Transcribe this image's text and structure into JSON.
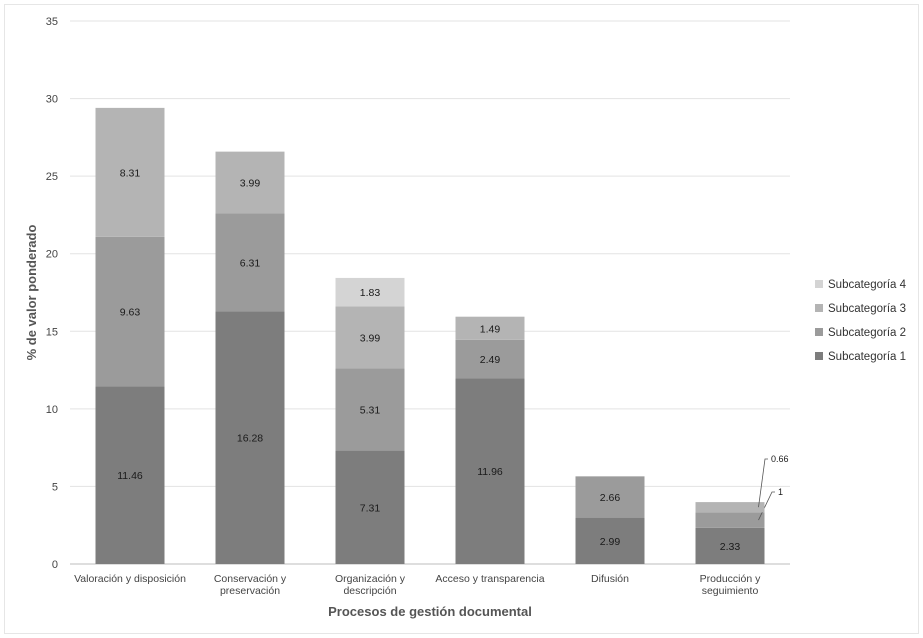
{
  "chart_data": {
    "type": "bar",
    "stacked": true,
    "title": "",
    "xlabel": "Procesos de gestión documental",
    "ylabel": "% de valor ponderado",
    "ylim": [
      0,
      35
    ],
    "yticks": [
      0,
      5,
      10,
      15,
      20,
      25,
      30,
      35
    ],
    "grid": true,
    "legend_position": "right",
    "categories": [
      [
        "Valoración y disposición"
      ],
      [
        "Conservación y",
        "preservación"
      ],
      [
        "Organización y",
        "descripción"
      ],
      [
        "Acceso y transparencia"
      ],
      [
        "Difusión"
      ],
      [
        "Producción y",
        "seguimiento"
      ]
    ],
    "series": [
      {
        "name": "Subcategoría 1",
        "color": "#7d7d7d",
        "values": [
          11.46,
          16.28,
          7.31,
          11.96,
          2.99,
          2.33
        ],
        "labels": [
          "11.46",
          "16.28",
          "7.31",
          "11.96",
          "2.99",
          "2.33"
        ]
      },
      {
        "name": "Subcategoría 2",
        "color": "#9b9b9b",
        "values": [
          9.63,
          6.31,
          5.31,
          2.49,
          2.66,
          1
        ],
        "labels": [
          "9.63",
          "6.31",
          "5.31",
          "2.49",
          "2.66",
          "1"
        ]
      },
      {
        "name": "Subcategoría 3",
        "color": "#b4b4b4",
        "values": [
          8.31,
          3.99,
          3.99,
          1.49,
          null,
          0.66
        ],
        "labels": [
          "8.31",
          "3.99",
          "3.99",
          "1.49",
          null,
          "0.66"
        ]
      },
      {
        "name": "Subcategoría 4",
        "color": "#d4d4d4",
        "values": [
          null,
          null,
          1.83,
          null,
          null,
          null
        ],
        "labels": [
          null,
          null,
          "1.83",
          null,
          null,
          null
        ]
      }
    ]
  }
}
